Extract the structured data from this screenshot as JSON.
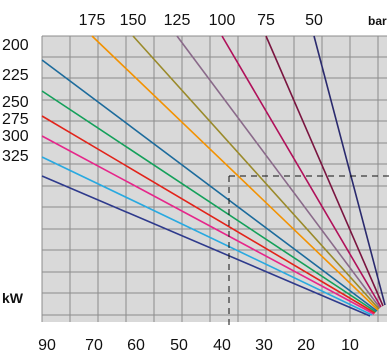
{
  "chart_data": {
    "type": "line",
    "title": "",
    "xlabel": "kW",
    "ylabel": "",
    "x_unit": "kW",
    "top_unit": "bar",
    "x_axis_ticks": [
      "90",
      "70",
      "60",
      "50",
      "40",
      "30",
      "20",
      "10"
    ],
    "top_ticks": [
      "175",
      "150",
      "125",
      "100",
      "75",
      "50"
    ],
    "left_ticks": [
      "200",
      "225",
      "250",
      "275",
      "300",
      "325"
    ],
    "grid": true,
    "lines": [
      {
        "label": "325",
        "color": "#2e3a8c"
      },
      {
        "label": "300",
        "color": "#29a9e0"
      },
      {
        "label": "275",
        "color": "#e6268a"
      },
      {
        "label": "250",
        "color": "#e2231a"
      },
      {
        "label": "225",
        "color": "#14a05a"
      },
      {
        "label": "200",
        "color": "#1c6b9c"
      },
      {
        "label": "175",
        "color": "#f39200"
      },
      {
        "label": "150",
        "color": "#9a8a2a"
      },
      {
        "label": "125",
        "color": "#8a6a8a"
      },
      {
        "label": "100",
        "color": "#b0105a"
      },
      {
        "label": "75",
        "color": "#7a1540"
      },
      {
        "label": "50",
        "color": "#2a2a6e"
      }
    ],
    "reference": {
      "kw": 38,
      "line_label": "100"
    }
  }
}
